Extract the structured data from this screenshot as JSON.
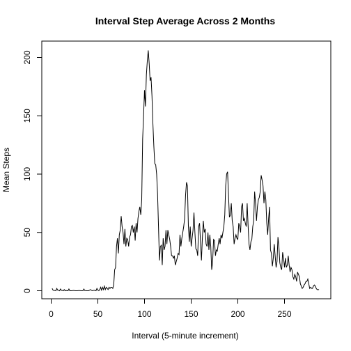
{
  "chart_data": {
    "type": "line",
    "title": "Interval Step Average Across 2 Months",
    "xlabel": "Interval (5-minute increment)",
    "ylabel": "Mean Steps",
    "xlim": [
      0,
      288
    ],
    "ylim": [
      0,
      210
    ],
    "grid": false,
    "legend": "none",
    "x_ticks": [
      0,
      50,
      100,
      150,
      200,
      250
    ],
    "y_ticks": [
      0,
      50,
      100,
      150,
      200
    ],
    "series": [
      {
        "color": "#000000",
        "points": [
          [
            1,
            2
          ],
          [
            2,
            0.5
          ],
          [
            3,
            0.2
          ],
          [
            4,
            0.2
          ],
          [
            5,
            0
          ],
          [
            6,
            2
          ],
          [
            7,
            0.5
          ],
          [
            8,
            0.5
          ],
          [
            9,
            0
          ],
          [
            10,
            1.5
          ],
          [
            11,
            0.3
          ],
          [
            12,
            0.3
          ],
          [
            13,
            0
          ],
          [
            14,
            1
          ],
          [
            15,
            0
          ],
          [
            16,
            0.3
          ],
          [
            17,
            0
          ],
          [
            18,
            0
          ],
          [
            19,
            1.5
          ],
          [
            20,
            0
          ],
          [
            22,
            0
          ],
          [
            24,
            0.3
          ],
          [
            26,
            0
          ],
          [
            28,
            0
          ],
          [
            30,
            0.2
          ],
          [
            32,
            0
          ],
          [
            34,
            0
          ],
          [
            35,
            1.5
          ],
          [
            36,
            0.2
          ],
          [
            38,
            0
          ],
          [
            40,
            0
          ],
          [
            42,
            1
          ],
          [
            44,
            0
          ],
          [
            46,
            0.5
          ],
          [
            48,
            0
          ],
          [
            49,
            2
          ],
          [
            50,
            0.5
          ],
          [
            51,
            0
          ],
          [
            52,
            1
          ],
          [
            53,
            3
          ],
          [
            54,
            0.5
          ],
          [
            55,
            3
          ],
          [
            56,
            1
          ],
          [
            57,
            4
          ],
          [
            58,
            1
          ],
          [
            59,
            3
          ],
          [
            60,
            2
          ],
          [
            61,
            1
          ],
          [
            62,
            3
          ],
          [
            63,
            2
          ],
          [
            64,
            3
          ],
          [
            65,
            3
          ],
          [
            66,
            2
          ],
          [
            67,
            5
          ],
          [
            68,
            18
          ],
          [
            69,
            20
          ],
          [
            70,
            38
          ],
          [
            71,
            45
          ],
          [
            72,
            32
          ],
          [
            73,
            48
          ],
          [
            74,
            52
          ],
          [
            75,
            64
          ],
          [
            76,
            55
          ],
          [
            77,
            50
          ],
          [
            78,
            40
          ],
          [
            79,
            53
          ],
          [
            80,
            38
          ],
          [
            81,
            45
          ],
          [
            82,
            44
          ],
          [
            83,
            38
          ],
          [
            84,
            46
          ],
          [
            85,
            48
          ],
          [
            86,
            55
          ],
          [
            87,
            56
          ],
          [
            88,
            50
          ],
          [
            89,
            55
          ],
          [
            90,
            43
          ],
          [
            91,
            58
          ],
          [
            92,
            50
          ],
          [
            93,
            62
          ],
          [
            94,
            68
          ],
          [
            95,
            72
          ],
          [
            96,
            65
          ],
          [
            97,
            78
          ],
          [
            98,
            130
          ],
          [
            99,
            150
          ],
          [
            100,
            172
          ],
          [
            101,
            158
          ],
          [
            102,
            185
          ],
          [
            103,
            197
          ],
          [
            104,
            206
          ],
          [
            105,
            195
          ],
          [
            106,
            180
          ],
          [
            107,
            183
          ],
          [
            108,
            167
          ],
          [
            109,
            143
          ],
          [
            110,
            124
          ],
          [
            111,
            109
          ],
          [
            112,
            108
          ],
          [
            113,
            100
          ],
          [
            114,
            83
          ],
          [
            115,
            55
          ],
          [
            116,
            26
          ],
          [
            117,
            38
          ],
          [
            118,
            39
          ],
          [
            119,
            22
          ],
          [
            120,
            45
          ],
          [
            121,
            35
          ],
          [
            122,
            38
          ],
          [
            123,
            52
          ],
          [
            124,
            40
          ],
          [
            125,
            52
          ],
          [
            126,
            48
          ],
          [
            127,
            44
          ],
          [
            128,
            38
          ],
          [
            129,
            30
          ],
          [
            130,
            30
          ],
          [
            131,
            28
          ],
          [
            132,
            30
          ],
          [
            133,
            22
          ],
          [
            134,
            25
          ],
          [
            135,
            28
          ],
          [
            136,
            32
          ],
          [
            137,
            31
          ],
          [
            138,
            48
          ],
          [
            139,
            38
          ],
          [
            140,
            45
          ],
          [
            141,
            50
          ],
          [
            142,
            55
          ],
          [
            143,
            62
          ],
          [
            144,
            82
          ],
          [
            145,
            93
          ],
          [
            146,
            90
          ],
          [
            147,
            56
          ],
          [
            148,
            42
          ],
          [
            149,
            55
          ],
          [
            150,
            38
          ],
          [
            151,
            45
          ],
          [
            152,
            52
          ],
          [
            153,
            67
          ],
          [
            154,
            50
          ],
          [
            155,
            36
          ],
          [
            156,
            35
          ],
          [
            157,
            30
          ],
          [
            158,
            55
          ],
          [
            159,
            58
          ],
          [
            160,
            42
          ],
          [
            161,
            26
          ],
          [
            162,
            45
          ],
          [
            163,
            60
          ],
          [
            164,
            50
          ],
          [
            165,
            53
          ],
          [
            166,
            40
          ],
          [
            167,
            38
          ],
          [
            168,
            50
          ],
          [
            169,
            35
          ],
          [
            170,
            48
          ],
          [
            171,
            38
          ],
          [
            172,
            18
          ],
          [
            173,
            25
          ],
          [
            174,
            44
          ],
          [
            175,
            43
          ],
          [
            176,
            30
          ],
          [
            177,
            35
          ],
          [
            178,
            34
          ],
          [
            179,
            40
          ],
          [
            180,
            45
          ],
          [
            181,
            40
          ],
          [
            182,
            48
          ],
          [
            183,
            45
          ],
          [
            184,
            50
          ],
          [
            185,
            55
          ],
          [
            186,
            65
          ],
          [
            187,
            90
          ],
          [
            188,
            100
          ],
          [
            189,
            102
          ],
          [
            190,
            82
          ],
          [
            191,
            63
          ],
          [
            192,
            65
          ],
          [
            193,
            75
          ],
          [
            194,
            60
          ],
          [
            195,
            55
          ],
          [
            196,
            40
          ],
          [
            197,
            45
          ],
          [
            198,
            48
          ],
          [
            199,
            45
          ],
          [
            200,
            44
          ],
          [
            201,
            58
          ],
          [
            202,
            55
          ],
          [
            203,
            50
          ],
          [
            204,
            72
          ],
          [
            205,
            75
          ],
          [
            206,
            60
          ],
          [
            207,
            62
          ],
          [
            208,
            58
          ],
          [
            209,
            55
          ],
          [
            210,
            75
          ],
          [
            211,
            56
          ],
          [
            212,
            40
          ],
          [
            213,
            35
          ],
          [
            214,
            42
          ],
          [
            215,
            44
          ],
          [
            216,
            55
          ],
          [
            217,
            60
          ],
          [
            218,
            85
          ],
          [
            219,
            75
          ],
          [
            220,
            60
          ],
          [
            221,
            72
          ],
          [
            222,
            78
          ],
          [
            223,
            80
          ],
          [
            224,
            85
          ],
          [
            225,
            99
          ],
          [
            226,
            95
          ],
          [
            227,
            90
          ],
          [
            228,
            75
          ],
          [
            229,
            85
          ],
          [
            230,
            78
          ],
          [
            231,
            58
          ],
          [
            232,
            48
          ],
          [
            233,
            62
          ],
          [
            234,
            72
          ],
          [
            235,
            35
          ],
          [
            236,
            32
          ],
          [
            237,
            21
          ],
          [
            238,
            28
          ],
          [
            239,
            40
          ],
          [
            240,
            30
          ],
          [
            241,
            20
          ],
          [
            242,
            25
          ],
          [
            243,
            46
          ],
          [
            244,
            38
          ],
          [
            245,
            24
          ],
          [
            246,
            20
          ],
          [
            247,
            18
          ],
          [
            248,
            33
          ],
          [
            249,
            28
          ],
          [
            250,
            20
          ],
          [
            251,
            28
          ],
          [
            252,
            20
          ],
          [
            253,
            22
          ],
          [
            254,
            30
          ],
          [
            255,
            22
          ],
          [
            256,
            16
          ],
          [
            257,
            20
          ],
          [
            258,
            18
          ],
          [
            259,
            12
          ],
          [
            260,
            10
          ],
          [
            261,
            14
          ],
          [
            262,
            12
          ],
          [
            263,
            8
          ],
          [
            264,
            16
          ],
          [
            265,
            14
          ],
          [
            266,
            12
          ],
          [
            267,
            6
          ],
          [
            268,
            4
          ],
          [
            269,
            2
          ],
          [
            270,
            3
          ],
          [
            271,
            5
          ],
          [
            272,
            6
          ],
          [
            273,
            8
          ],
          [
            274,
            8
          ],
          [
            275,
            10
          ],
          [
            276,
            6
          ],
          [
            277,
            2
          ],
          [
            278,
            3
          ],
          [
            279,
            2
          ],
          [
            280,
            2
          ],
          [
            281,
            4
          ],
          [
            282,
            5
          ],
          [
            283,
            4
          ],
          [
            284,
            2
          ],
          [
            285,
            1
          ],
          [
            286,
            1
          ],
          [
            287,
            1
          ]
        ]
      }
    ]
  }
}
